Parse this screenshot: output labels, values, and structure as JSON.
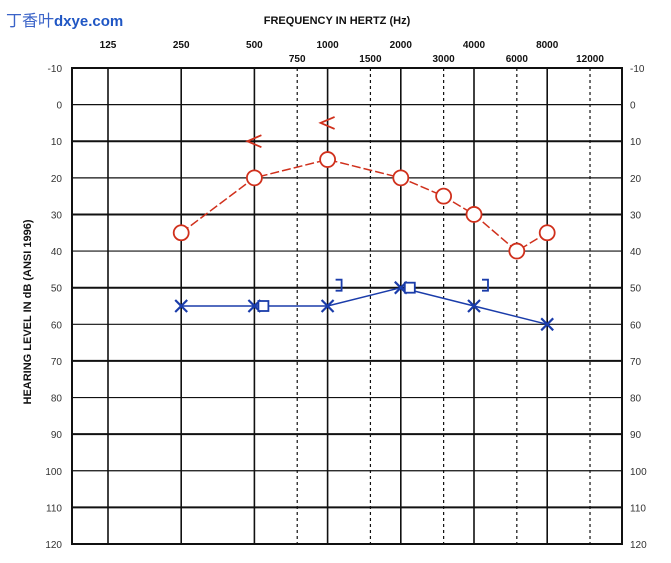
{
  "watermark": {
    "cn": "丁香叶",
    "en": "dxye.com"
  },
  "chart_data": {
    "type": "line",
    "title": "",
    "xlabel": "FREQUENCY IN HERTZ (Hz)",
    "ylabel": "HEARING LEVEL IN dB (ANSI 1996)",
    "x_scale": "log",
    "x_ticks_top": [
      "125",
      "250",
      "500",
      "1000",
      "2000",
      "4000",
      "8000"
    ],
    "x_ticks_inter": [
      "750",
      "1500",
      "3000",
      "6000",
      "12000"
    ],
    "ylim": [
      -10,
      120
    ],
    "y_inverted": true,
    "y_ticks": [
      "-10",
      "0",
      "10",
      "20",
      "30",
      "40",
      "50",
      "60",
      "70",
      "80",
      "90",
      "100",
      "110",
      "120"
    ],
    "grid": true,
    "series": [
      {
        "color": "#d0301c",
        "marker": "O",
        "x": [
          250,
          500,
          1000,
          2000,
          3000,
          4000,
          6000,
          8000
        ],
        "y": [
          35,
          20,
          15,
          20,
          25,
          30,
          40,
          35
        ]
      },
      {
        "color": "#d0301c",
        "marker": "<",
        "x": [
          500,
          1000
        ],
        "y": [
          10,
          5
        ]
      },
      {
        "color": "#1a3caa",
        "marker": "X",
        "x": [
          250,
          500,
          1000,
          2000,
          4000,
          8000
        ],
        "y": [
          55,
          55,
          55,
          50,
          55,
          60
        ]
      },
      {
        "color": "#1a3caa",
        "marker": "square",
        "x": [
          500,
          2000
        ],
        "y": [
          55,
          50
        ]
      },
      {
        "color": "#1a3caa",
        "marker": "]",
        "x": [
          1000,
          4000
        ],
        "y": [
          50,
          50
        ]
      }
    ]
  }
}
